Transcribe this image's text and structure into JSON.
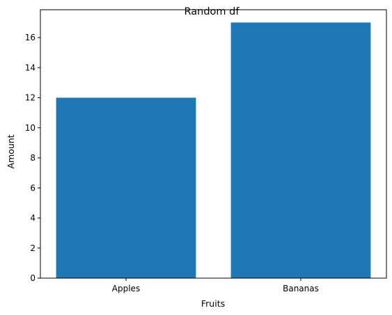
{
  "chart_data": {
    "type": "bar",
    "title": "Random df",
    "xlabel": "Fruits",
    "ylabel": "Amount",
    "categories": [
      "Apples",
      "Bananas"
    ],
    "values": [
      12,
      17
    ],
    "ylim": [
      0,
      17.85
    ],
    "yticks": [
      0,
      2,
      4,
      6,
      8,
      10,
      12,
      14,
      16
    ],
    "bar_color": "#1f77b4",
    "grid": false,
    "legend": "none"
  }
}
